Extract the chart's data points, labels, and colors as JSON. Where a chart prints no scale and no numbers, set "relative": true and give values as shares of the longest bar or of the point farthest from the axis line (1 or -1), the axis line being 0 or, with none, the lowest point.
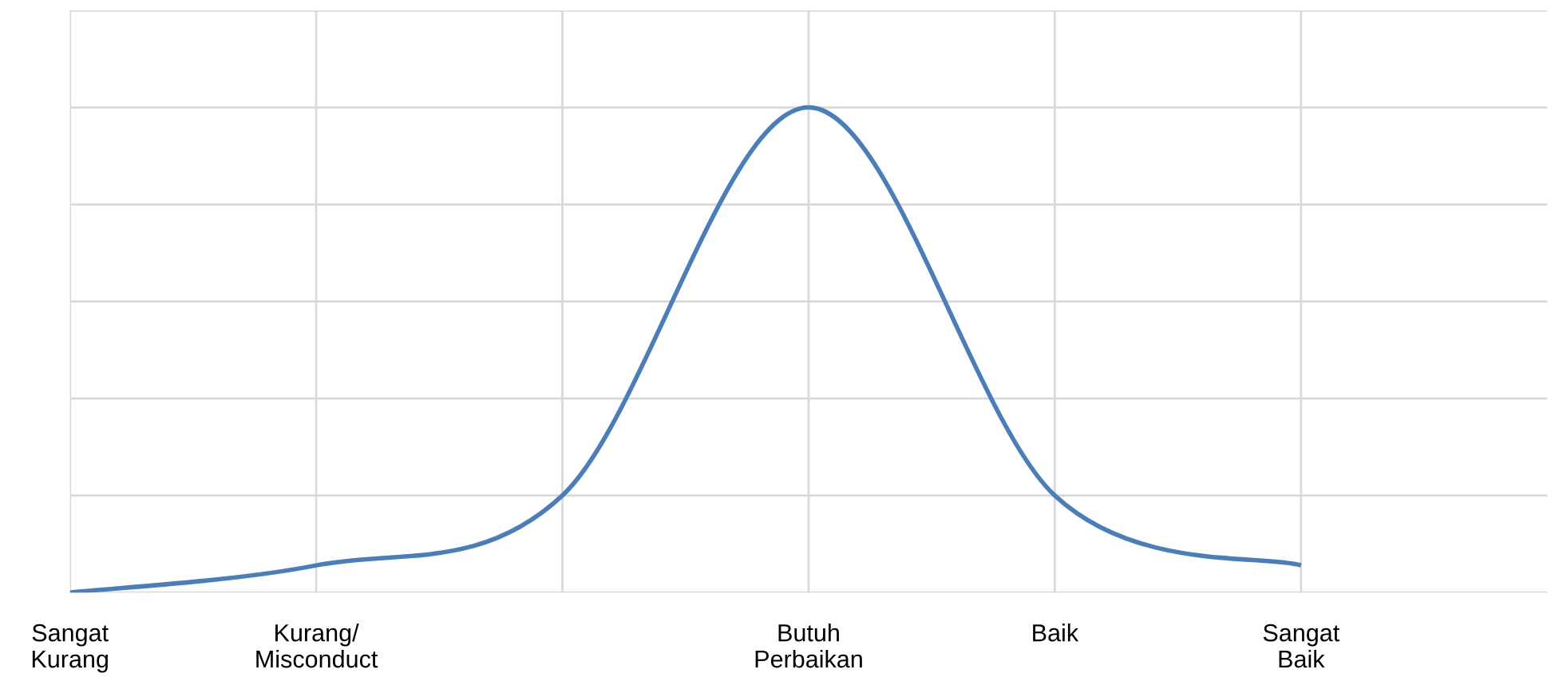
{
  "chart_data": {
    "type": "line",
    "relative": true,
    "categories": [
      "Sangat\nKurang",
      "Kurang/\nMisconduct",
      null,
      "Butuh\nPerbaikan",
      "Baik",
      "Sangat\nBaik"
    ],
    "series": [
      {
        "color": "#4a7ebb",
        "values": [
          0,
          0.056,
          0.2,
          1,
          0.2,
          0.056
        ]
      }
    ],
    "grid": true,
    "marker": "none",
    "line_style": "solid"
  }
}
